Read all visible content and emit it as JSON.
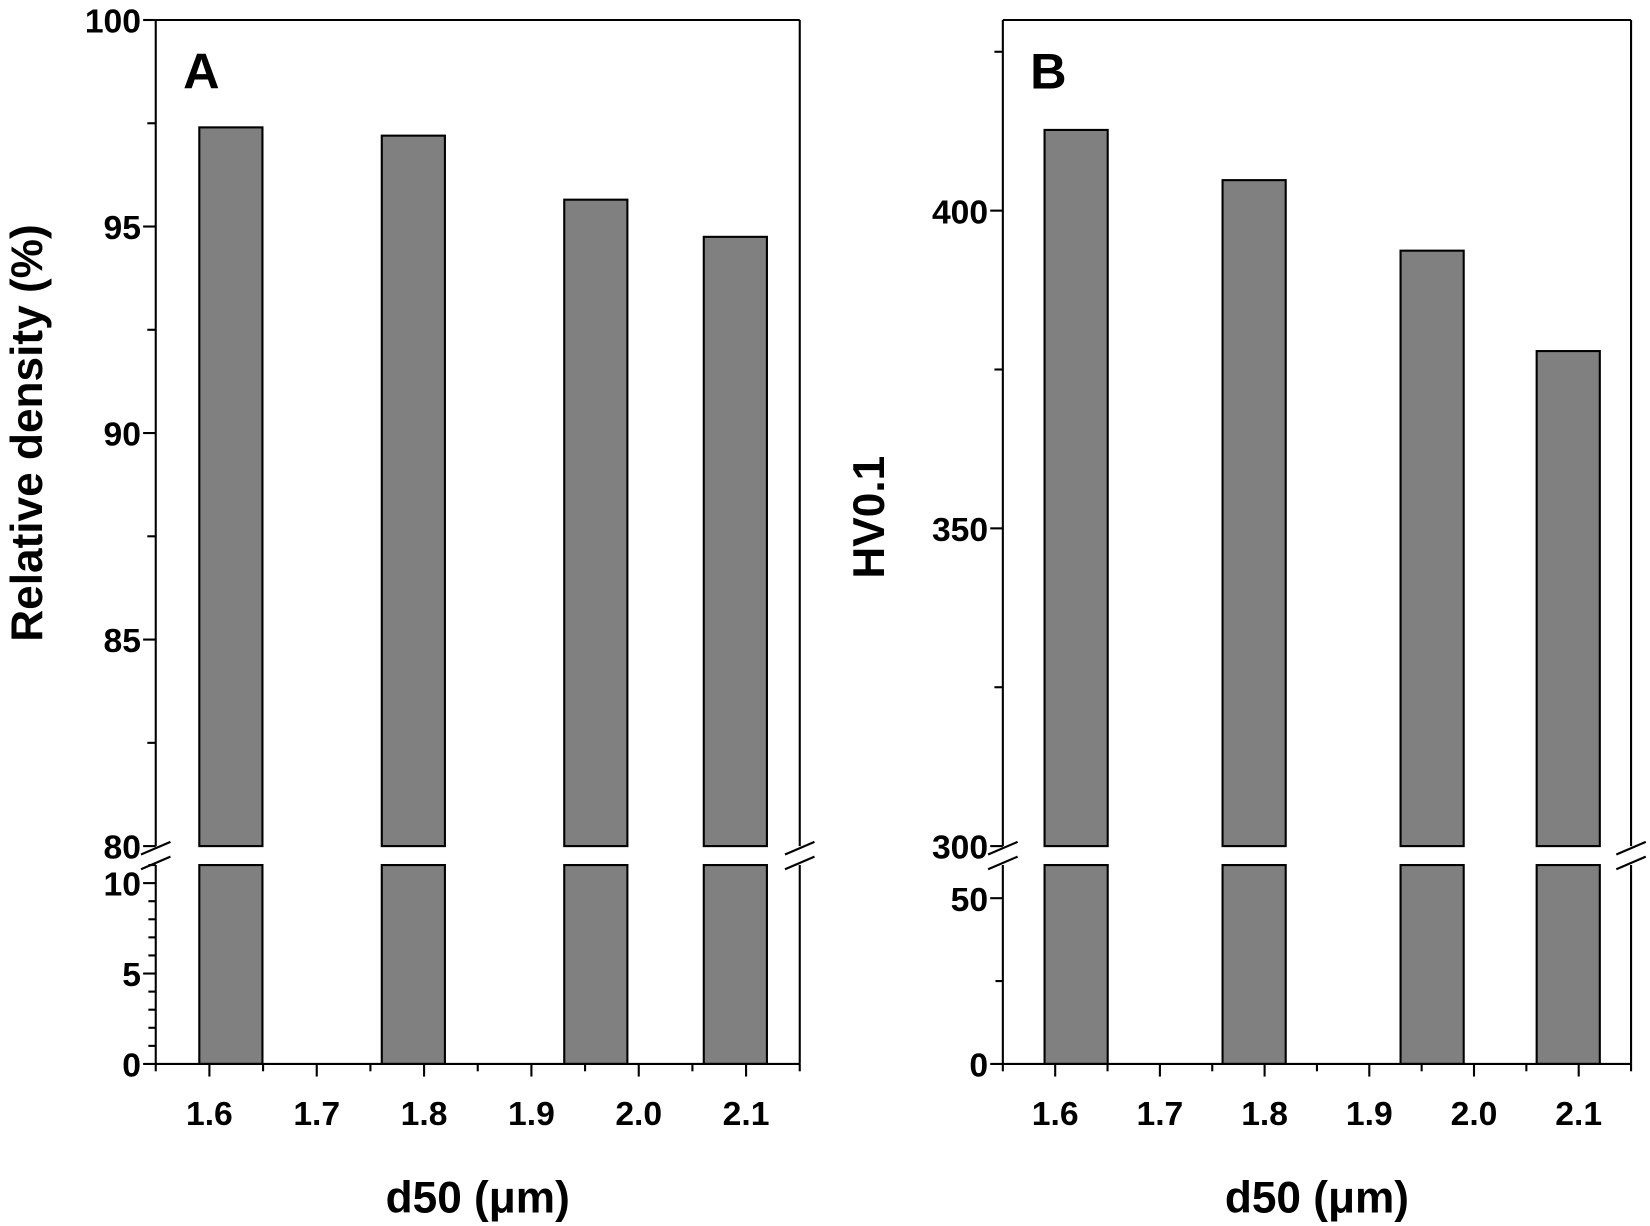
{
  "chart_data": [
    {
      "type": "bar",
      "panel_label": "A",
      "xlabel": "d50 (μm)",
      "ylabel": "Relative density (%)",
      "x": [
        1.62,
        1.79,
        1.96,
        2.09
      ],
      "values": [
        97.4,
        97.2,
        95.65,
        94.75
      ],
      "xlim": [
        1.55,
        2.15
      ],
      "xticks": [
        "1.6",
        "1.7",
        "1.8",
        "1.9",
        "2.0",
        "2.1"
      ],
      "ylim_upper": [
        80,
        100
      ],
      "yticks_upper": [
        "80",
        "85",
        "90",
        "95",
        "100"
      ],
      "ylim_lower": [
        0,
        11
      ],
      "yticks_lower": [
        "0",
        "5",
        "10"
      ],
      "axis_break": true,
      "bar_color": "#808080"
    },
    {
      "type": "bar",
      "panel_label": "B",
      "xlabel": "d50 (μm)",
      "ylabel": "HV0.1",
      "x": [
        1.62,
        1.79,
        1.96,
        2.09
      ],
      "values": [
        412.7,
        404.8,
        393.7,
        377.9
      ],
      "xlim": [
        1.55,
        2.15
      ],
      "xticks": [
        "1.6",
        "1.7",
        "1.8",
        "1.9",
        "2.0",
        "2.1"
      ],
      "ylim_upper": [
        300,
        430
      ],
      "yticks_upper": [
        "300",
        "350",
        "400"
      ],
      "ylim_lower": [
        0,
        60
      ],
      "yticks_lower": [
        "0",
        "50"
      ],
      "axis_break": true,
      "bar_color": "#808080"
    }
  ]
}
